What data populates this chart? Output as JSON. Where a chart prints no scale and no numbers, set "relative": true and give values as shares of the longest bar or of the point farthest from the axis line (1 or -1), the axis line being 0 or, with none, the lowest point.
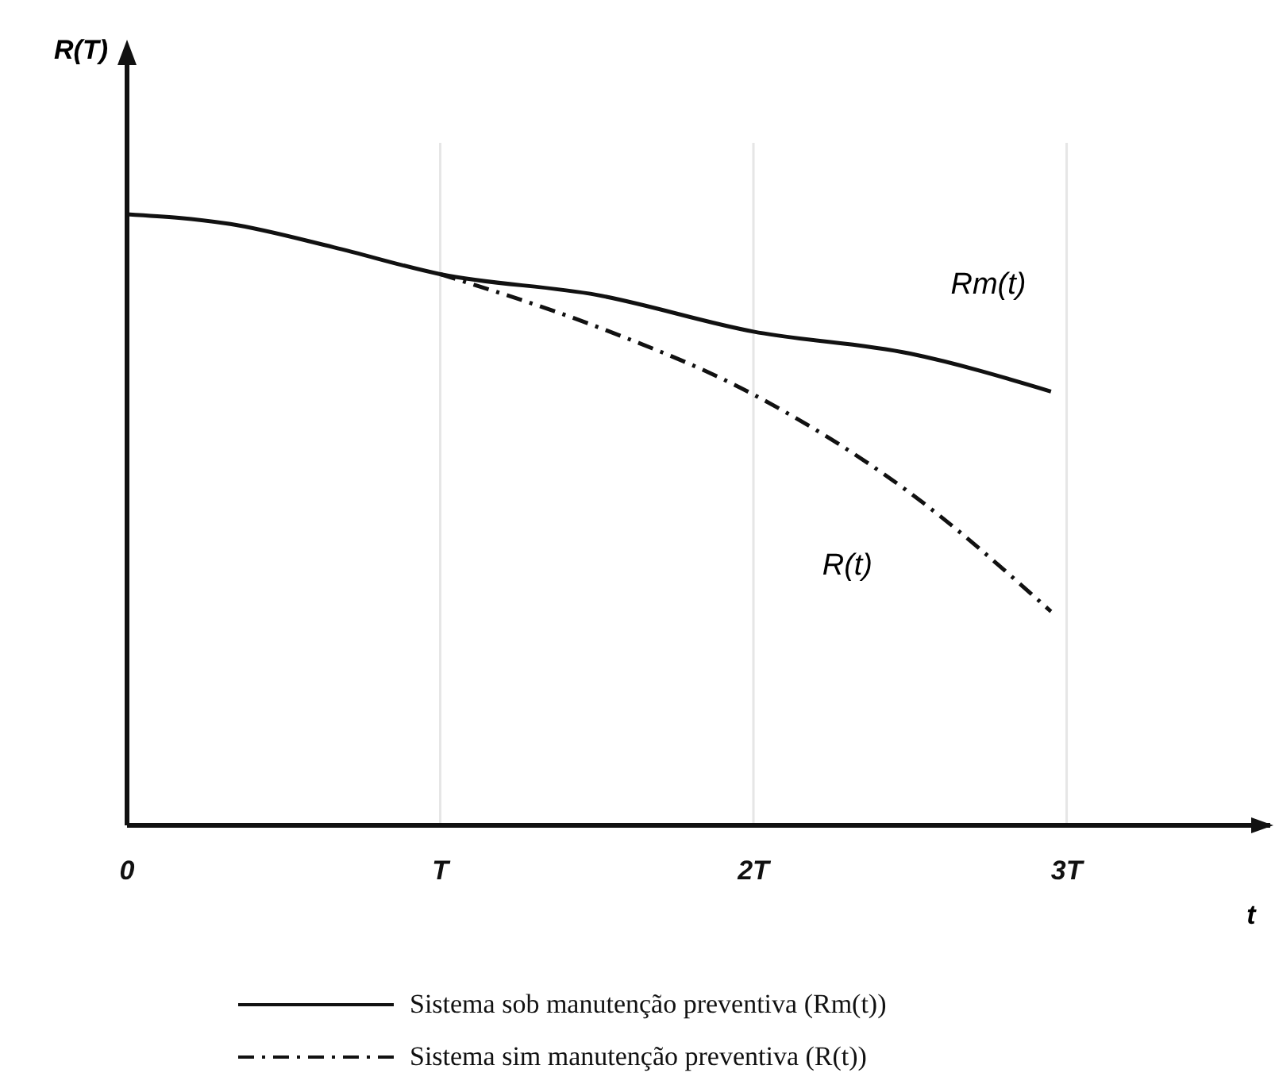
{
  "chart_data": {
    "type": "line",
    "relative": true,
    "xlabel": "t",
    "xlim": [
      0,
      3.65
    ],
    "xticks": [
      {
        "value": 0,
        "label": "0"
      },
      {
        "value": 1,
        "label": "T"
      },
      {
        "value": 2,
        "label": "2T"
      },
      {
        "value": 3,
        "label": "3T"
      }
    ],
    "grid": "x",
    "legend": "bottom",
    "marker": "none",
    "series": [
      {
        "name": "Sistema sob manutenção preventiva (Rm(t))",
        "color": "#111111",
        "line_style": "solid",
        "x": [
          0,
          0.33,
          0.66,
          1,
          1.5,
          2,
          2.5,
          2.95
        ],
        "values": [
          1,
          0.984,
          0.946,
          0.902,
          0.868,
          0.808,
          0.772,
          0.71
        ]
      },
      {
        "name": "Sistema sim manutenção preventiva (R(t))",
        "color": "#111111",
        "line_style": "dashed",
        "x": [
          1,
          1.5,
          2,
          2.5,
          2.95
        ],
        "values": [
          0.902,
          0.816,
          0.705,
          0.544,
          0.35
        ]
      }
    ],
    "annotations": [
      "R(T)",
      "Rm(t)",
      "R(t)"
    ]
  }
}
